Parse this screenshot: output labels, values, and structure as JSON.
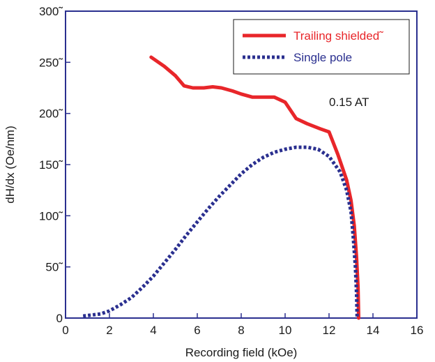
{
  "chart_data": {
    "type": "line",
    "xlabel": "Recording field (kOe)",
    "ylabel": "dH/dx (Oe/nm)",
    "xlim": [
      0,
      16
    ],
    "ylim": [
      0,
      300
    ],
    "x_ticks": [
      "0",
      "2",
      "4",
      "6",
      "8",
      "10",
      "12",
      "14",
      "16"
    ],
    "y_ticks": [
      "0",
      "50˜",
      "100˜",
      "150˜",
      "200˜",
      "250˜",
      "300˜"
    ],
    "grid": false,
    "legend_position": "top-right",
    "annotation": "0.15 AT",
    "series": [
      {
        "name": "Trailing shielded˜",
        "color": "#e8262a",
        "style": "solid",
        "points": [
          [
            3.9,
            255
          ],
          [
            4.5,
            246
          ],
          [
            5.0,
            237
          ],
          [
            5.4,
            227
          ],
          [
            5.8,
            225
          ],
          [
            6.3,
            225
          ],
          [
            6.7,
            226
          ],
          [
            7.1,
            225
          ],
          [
            7.6,
            222
          ],
          [
            8.0,
            219
          ],
          [
            8.5,
            216
          ],
          [
            9.0,
            216
          ],
          [
            9.5,
            216
          ],
          [
            10.0,
            211
          ],
          [
            10.5,
            195
          ],
          [
            11.0,
            190
          ],
          [
            11.6,
            185
          ],
          [
            12.0,
            182
          ],
          [
            12.4,
            160
          ],
          [
            12.8,
            135
          ],
          [
            13.0,
            115
          ],
          [
            13.15,
            90
          ],
          [
            13.25,
            60
          ],
          [
            13.32,
            30
          ],
          [
            13.35,
            0
          ]
        ]
      },
      {
        "name": "Single pole",
        "color": "#2a2f8f",
        "style": "dotted",
        "points": [
          [
            0.8,
            2
          ],
          [
            1.2,
            3
          ],
          [
            1.6,
            4
          ],
          [
            2.0,
            7
          ],
          [
            2.5,
            13
          ],
          [
            3.0,
            20
          ],
          [
            3.5,
            30
          ],
          [
            4.0,
            41
          ],
          [
            4.5,
            54
          ],
          [
            5.0,
            67
          ],
          [
            5.5,
            81
          ],
          [
            6.0,
            94
          ],
          [
            6.5,
            107
          ],
          [
            7.0,
            119
          ],
          [
            7.5,
            130
          ],
          [
            8.0,
            141
          ],
          [
            8.5,
            150
          ],
          [
            9.0,
            157
          ],
          [
            9.5,
            162
          ],
          [
            10.0,
            165
          ],
          [
            10.5,
            167
          ],
          [
            11.0,
            167
          ],
          [
            11.5,
            165
          ],
          [
            12.0,
            158
          ],
          [
            12.5,
            143
          ],
          [
            12.8,
            125
          ],
          [
            13.0,
            104
          ],
          [
            13.1,
            80
          ],
          [
            13.2,
            50
          ],
          [
            13.25,
            25
          ],
          [
            13.28,
            0
          ]
        ]
      }
    ]
  }
}
